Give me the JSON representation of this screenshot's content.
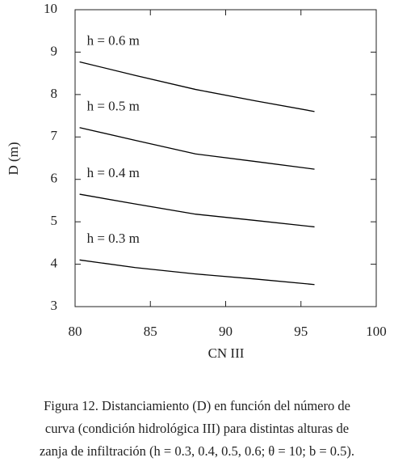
{
  "chart_data": {
    "type": "line",
    "x": [
      80.3,
      84,
      88,
      92,
      95.9
    ],
    "series": [
      {
        "name": "h = 0.6 m",
        "color": "#000000",
        "values": [
          8.77,
          8.45,
          8.12,
          7.85,
          7.6
        ]
      },
      {
        "name": "h = 0.5 m",
        "color": "#000000",
        "values": [
          7.22,
          6.92,
          6.6,
          6.42,
          6.24
        ]
      },
      {
        "name": "h = 0.4 m",
        "color": "#000000",
        "values": [
          5.65,
          5.42,
          5.18,
          5.03,
          4.88
        ]
      },
      {
        "name": "h = 0.3 m",
        "color": "#000000",
        "values": [
          4.1,
          3.92,
          3.77,
          3.65,
          3.52
        ]
      }
    ],
    "xlabel": "CN III",
    "ylabel": "D (m)",
    "xlim": [
      80,
      100
    ],
    "xticks": [
      80,
      85,
      90,
      95,
      100
    ],
    "ylim": [
      3,
      10
    ],
    "yticks": [
      3,
      4,
      5,
      6,
      7,
      8,
      9,
      10
    ],
    "grid": false
  },
  "caption": [
    "Figura 12. Distanciamiento (D) en función del número de",
    "curva (condición hidrológica III) para distintas alturas de",
    "zanja de infiltración (h = 0.3, 0.4, 0.5, 0.6; θ = 10; b = 0.5)."
  ]
}
